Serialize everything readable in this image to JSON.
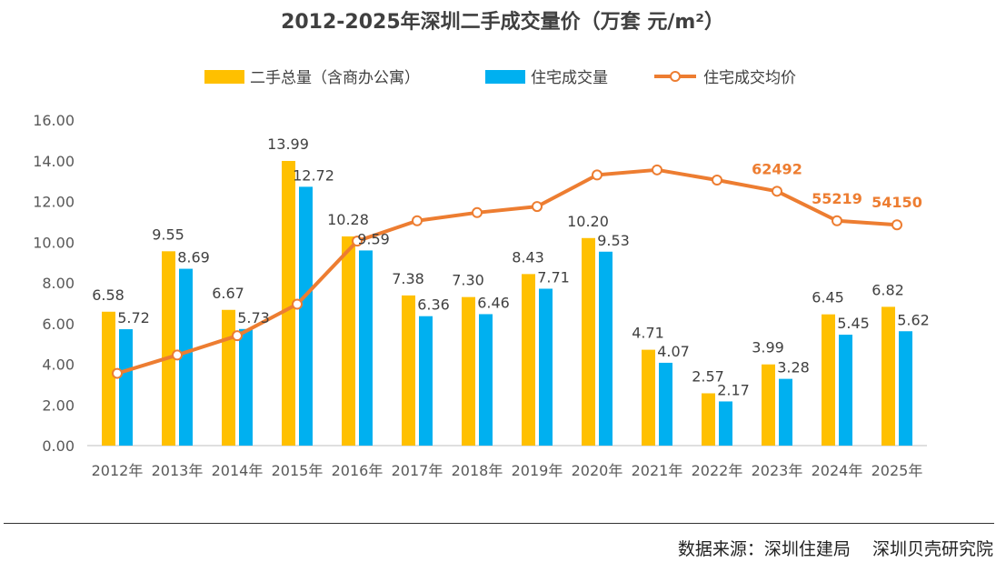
{
  "chart_data": {
    "type": "bar",
    "title": "2012-2025年深圳二手成交量价（万套  元/m²）",
    "categories": [
      "2012年",
      "2013年",
      "2014年",
      "2015年",
      "2016年",
      "2017年",
      "2018年",
      "2019年",
      "2020年",
      "2021年",
      "2022年",
      "2023年",
      "2024年",
      "2025年"
    ],
    "ylim": [
      0,
      16
    ],
    "yticks": [
      "0.00",
      "2.00",
      "4.00",
      "6.00",
      "8.00",
      "10.00",
      "12.00",
      "14.00",
      "16.00"
    ],
    "series": [
      {
        "name": "二手总量（含商办公寓）",
        "kind": "bar",
        "color": "#FFC000",
        "values": [
          6.58,
          9.55,
          6.67,
          13.99,
          10.28,
          7.38,
          7.3,
          8.43,
          10.2,
          4.71,
          2.57,
          3.99,
          6.45,
          6.82
        ],
        "labels": [
          "6.58",
          "9.55",
          "6.67",
          "13.99",
          "10.28",
          "7.38",
          "7.30",
          "8.43",
          "10.20",
          "4.71",
          "2.57",
          "3.99",
          "6.45",
          "6.82"
        ]
      },
      {
        "name": "住宅成交量",
        "kind": "bar",
        "color": "#00B0F0",
        "values": [
          5.72,
          8.69,
          5.73,
          12.72,
          9.59,
          6.36,
          6.46,
          7.71,
          9.53,
          4.07,
          2.17,
          3.28,
          5.45,
          5.62
        ],
        "labels": [
          "5.72",
          "8.69",
          "5.73",
          "12.72",
          "9.59",
          "6.36",
          "6.46",
          "7.71",
          "9.53",
          "4.07",
          "2.17",
          "3.28",
          "5.45",
          "5.62"
        ]
      },
      {
        "name": "住宅成交均价",
        "kind": "line",
        "color": "#ED7D31",
        "values": [
          3.55,
          4.45,
          5.4,
          6.95,
          10.05,
          11.05,
          11.45,
          11.75,
          13.3,
          13.55,
          13.05,
          12.5,
          11.05,
          10.85
        ],
        "point_labels": {
          "11": "62492",
          "12": "55219",
          "13": "54150"
        }
      }
    ]
  },
  "source": "数据来源：深圳住建局    深圳贝壳研究院"
}
